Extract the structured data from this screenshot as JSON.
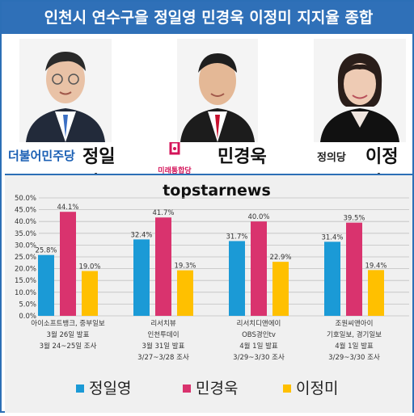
{
  "title": "인천시 연수구을 정일영 민경욱 이정미 지지율 종합",
  "candidates": [
    {
      "name": "정일영",
      "party": "더불어민주당",
      "party_color": "#1a5fb4",
      "photo_bg": "#f3f3f3",
      "suit": "#222a3a",
      "tie": "#3b6fc4"
    },
    {
      "name": "민경욱",
      "party": "미래통합당",
      "party_color": "#d4145a",
      "photo_bg": "#f3f3f3",
      "suit": "#1c1c1c",
      "tie": "#c8102e"
    },
    {
      "name": "이정미",
      "party": "정의당",
      "party_color": "#f0b400",
      "photo_bg": "#f3f3f3",
      "suit": "#111111",
      "tie": "#111111"
    }
  ],
  "brand": "topstarnews",
  "chart_data": {
    "type": "bar",
    "categories": [
      [
        "아이소프트뱅크, 중부일보",
        "3월 26일 발표",
        "3월 24~25일 조사"
      ],
      [
        "리서치뷰",
        "인천투데이",
        "3월 31일 발표",
        "3/27~3/28 조사"
      ],
      [
        "리서치디앤에이",
        "OBS경인tv",
        "4월 1일 발표",
        "3/29~3/30 조사"
      ],
      [
        "조원씨앤아이",
        "기호일보, 경기일보",
        "4월 1일 발표",
        "3/29~3/30 조사"
      ]
    ],
    "series": [
      {
        "name": "정일영",
        "color": "#1b9ad6",
        "values": [
          25.8,
          32.4,
          31.7,
          31.4
        ],
        "labels": [
          "25.8%",
          "32.4%",
          "31.7%",
          "31.4%"
        ]
      },
      {
        "name": "민경욱",
        "color": "#d9336e",
        "values": [
          44.1,
          41.7,
          40.0,
          39.5
        ],
        "labels": [
          "44.1%",
          "41.7%",
          "40.0%",
          "39.5%"
        ]
      },
      {
        "name": "이정미",
        "color": "#ffc000",
        "values": [
          19.0,
          19.3,
          22.9,
          19.4
        ],
        "labels": [
          "19.0%",
          "19.3%",
          "22.9%",
          "19.4%"
        ]
      }
    ],
    "y_ticks": [
      "0.0%",
      "5.0%",
      "10.0%",
      "15.0%",
      "20.0%",
      "25.0%",
      "30.0%",
      "35.0%",
      "40.0%",
      "45.0%",
      "50.0%"
    ],
    "ylim": [
      0,
      50
    ],
    "grid": true,
    "legend_position": "bottom"
  }
}
